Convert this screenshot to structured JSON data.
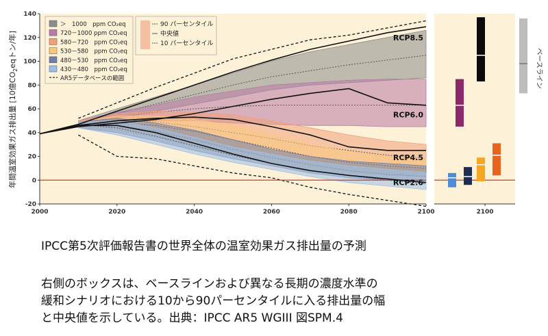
{
  "chart_data": {
    "type": "area",
    "ylabel": "年間温室効果ガス排出量 [10億CO₂eqトン/年]",
    "ylabel_parts": [
      "年間温室効果ガス排出量 [10億CO",
      "2",
      "eqトン/年]"
    ],
    "xlim": [
      2000,
      2100
    ],
    "ylim": [
      -20,
      140
    ],
    "x_ticks": [
      "2000",
      "2020",
      "2040",
      "2060",
      "2080",
      "2100"
    ],
    "y_ticks": [
      "-20",
      "0",
      "20",
      "40",
      "60",
      "80",
      "100",
      "120",
      "140"
    ],
    "legend_categories": [
      {
        "name": "＞　1000　ppm CO₂eq",
        "color": "#8c8c8c"
      },
      {
        "name": "720－1000 ppm CO₂eq",
        "color": "#b87aa6"
      },
      {
        "name": "580－720　ppm CO₂eq",
        "color": "#f0a07a"
      },
      {
        "name": "530－580　ppm CO₂eq",
        "color": "#f9c880"
      },
      {
        "name": "480－530　ppm CO₂eq",
        "color": "#6f7fa8"
      },
      {
        "name": "430－480　ppm CO₂eq",
        "color": "#9fbfe6"
      }
    ],
    "legend_database": "AR5データベースの範囲",
    "legend_percentiles": [
      "90 パーセンタイル",
      "中央値",
      "10 パーセンタイル"
    ],
    "rcp_labels": [
      {
        "name": "RCP8.5",
        "year": 2100,
        "value": 120
      },
      {
        "name": "RCP6.0",
        "year": 2100,
        "value": 55
      },
      {
        "name": "RCP4.5",
        "year": 2100,
        "value": 19
      },
      {
        "name": "RCP2.6",
        "year": 2100,
        "value": -2
      }
    ],
    "series": [
      {
        "name": "> 1000 ppm CO2eq",
        "color": "#8c8c8c",
        "x": [
          2010,
          2020,
          2030,
          2040,
          2050,
          2060,
          2070,
          2080,
          2090,
          2100
        ],
        "upper": [
          50,
          60,
          70,
          80,
          90,
          100,
          108,
          114,
          120,
          126
        ],
        "lower": [
          47,
          52,
          58,
          64,
          70,
          76,
          80,
          82,
          84,
          86
        ],
        "median": [
          48,
          56,
          64,
          72,
          80,
          87,
          92,
          97,
          101,
          105
        ]
      },
      {
        "name": "720-1000 ppm CO2eq",
        "color": "#b87aa6",
        "x": [
          2010,
          2020,
          2030,
          2040,
          2050,
          2060,
          2070,
          2080,
          2090,
          2100
        ],
        "upper": [
          50,
          57,
          63,
          70,
          75,
          80,
          82,
          84,
          85,
          85
        ],
        "lower": [
          46,
          49,
          50,
          50,
          48,
          47,
          46,
          46,
          45,
          45
        ],
        "median": [
          48,
          53,
          57,
          60,
          62,
          63,
          63,
          63,
          63,
          63
        ]
      },
      {
        "name": "580-720 ppm CO2eq",
        "color": "#f0a07a",
        "x": [
          2010,
          2020,
          2030,
          2040,
          2050,
          2060,
          2070,
          2080,
          2090,
          2100
        ],
        "upper": [
          50,
          56,
          58,
          57,
          55,
          50,
          44,
          38,
          33,
          30
        ],
        "lower": [
          44,
          44,
          40,
          34,
          28,
          22,
          17,
          13,
          10,
          8
        ],
        "median": [
          47,
          50,
          49,
          45,
          40,
          35,
          29,
          25,
          21,
          18
        ]
      },
      {
        "name": "530-580 ppm CO2eq",
        "color": "#f9c880",
        "x": [
          2010,
          2020,
          2030,
          2040,
          2050,
          2060,
          2070,
          2080,
          2090,
          2100
        ],
        "upper": [
          49,
          54,
          54,
          51,
          46,
          38,
          30,
          24,
          20,
          18
        ],
        "lower": [
          44,
          42,
          36,
          28,
          21,
          14,
          9,
          6,
          4,
          3
        ],
        "median": [
          47,
          48,
          46,
          41,
          34,
          27,
          20,
          15,
          12,
          10
        ]
      },
      {
        "name": "480-530 ppm CO2eq",
        "color": "#6f7fa8",
        "x": [
          2010,
          2020,
          2030,
          2040,
          2050,
          2060,
          2070,
          2080,
          2090,
          2100
        ],
        "upper": [
          49,
          52,
          48,
          42,
          34,
          26,
          20,
          16,
          14,
          12
        ],
        "lower": [
          44,
          40,
          33,
          25,
          18,
          12,
          6,
          2,
          0,
          -2
        ],
        "median": [
          47,
          46,
          41,
          34,
          26,
          19,
          13,
          8,
          5,
          3
        ]
      },
      {
        "name": "430-480 ppm CO2eq",
        "color": "#9fbfe6",
        "x": [
          2010,
          2020,
          2030,
          2040,
          2050,
          2060,
          2070,
          2080,
          2090,
          2100
        ],
        "upper": [
          49,
          50,
          44,
          36,
          28,
          22,
          16,
          12,
          9,
          6
        ],
        "lower": [
          44,
          38,
          30,
          22,
          15,
          9,
          3,
          -2,
          -5,
          -8
        ],
        "median": [
          47,
          44,
          37,
          29,
          21,
          14,
          8,
          4,
          0,
          -3
        ]
      }
    ],
    "database_range": {
      "x": [
        2010,
        2020,
        2030,
        2040,
        2050,
        2060,
        2070,
        2080,
        2090,
        2100
      ],
      "upper": [
        52,
        65,
        78,
        90,
        102,
        110,
        118,
        122,
        128,
        134
      ],
      "lower": [
        38,
        20,
        18,
        12,
        6,
        2,
        -6,
        -12,
        -17,
        -22
      ]
    },
    "rcp_lines": [
      {
        "name": "RCP8.5",
        "x": [
          2000,
          2010,
          2020,
          2030,
          2040,
          2050,
          2060,
          2070,
          2080,
          2090,
          2100
        ],
        "y": [
          39,
          47,
          58,
          69,
          80,
          91,
          101,
          110,
          117,
          124,
          129
        ]
      },
      {
        "name": "RCP6.0",
        "x": [
          2000,
          2010,
          2020,
          2030,
          2040,
          2050,
          2060,
          2070,
          2080,
          2090,
          2100
        ],
        "y": [
          39,
          45,
          48,
          51,
          56,
          62,
          68,
          73,
          77,
          65,
          63
        ]
      },
      {
        "name": "RCP4.5",
        "x": [
          2000,
          2010,
          2020,
          2030,
          2040,
          2050,
          2060,
          2070,
          2080,
          2090,
          2100
        ],
        "y": [
          39,
          46,
          50,
          52,
          53,
          51,
          45,
          38,
          28,
          25,
          25
        ]
      },
      {
        "name": "RCP2.6",
        "x": [
          2000,
          2010,
          2020,
          2030,
          2040,
          2050,
          2060,
          2070,
          2080,
          2090,
          2100
        ],
        "y": [
          39,
          46,
          46,
          40,
          31,
          22,
          14,
          8,
          4,
          1,
          -2
        ]
      }
    ],
    "side_boxes": {
      "x_tick": "2100",
      "boxes": [
        {
          "category": "430-480",
          "color": "#4f8bd6",
          "p10": -6,
          "median": 2,
          "p90": 6
        },
        {
          "category": "480-530",
          "color": "#1d2d52",
          "p10": -4,
          "median": 3,
          "p90": 11
        },
        {
          "category": "530-580",
          "color": "#f6a623",
          "p10": -1,
          "median": 13,
          "p90": 19
        },
        {
          "category": "580-720",
          "color": "#e8641c",
          "p10": 4,
          "median": 21,
          "p90": 31
        },
        {
          "category": "720-1000",
          "color": "#8b2a6b",
          "p10": 45,
          "median": 63,
          "p90": 85
        },
        {
          "category": ">1000",
          "color": "#0a0a0a",
          "p10": 83,
          "median": 105,
          "p90": 137
        }
      ],
      "baseline": {
        "label": "ベースライン",
        "color": "#bdbdbd",
        "p10": 73,
        "median": 98,
        "p90": 136
      }
    }
  },
  "caption_title": "IPCC第5次評価報告書の世界全体の温室効果ガス排出量の予測",
  "caption_lines": [
    "右側のボックスは、ベースラインおよび異なる長期の濃度水準の",
    "緩和シナリオにおける10から90パーセンタイルに入る排出量の幅",
    "と中央値を示している。出典：IPCC AR5 WGIII 図SPM.4"
  ]
}
